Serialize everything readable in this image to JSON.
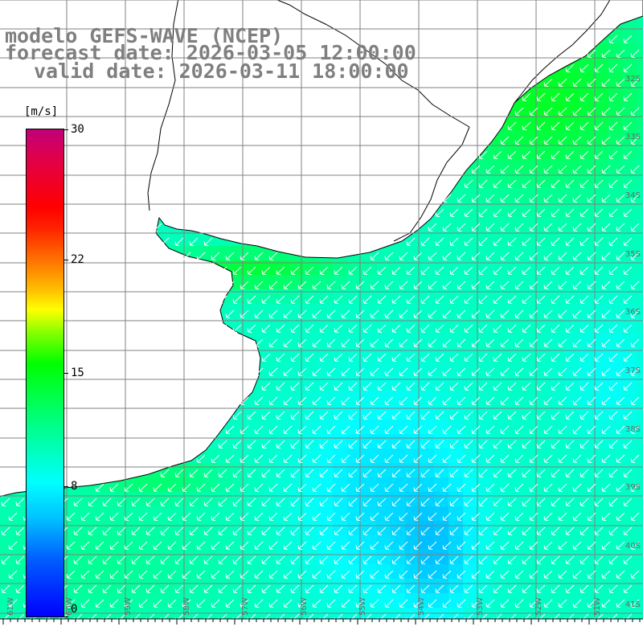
{
  "title": {
    "model": "modelo GEFS-WAVE (NCEP)",
    "forecast": "forecast date: 2026-03-05 12:00:00",
    "valid": "valid date: 2026-03-11 18:00:00"
  },
  "colorbar": {
    "unit": "[m/s]",
    "ticks": [
      "30",
      "22",
      "15",
      "8",
      "0"
    ],
    "tick_values": [
      30,
      22,
      15,
      8,
      0
    ],
    "min": 0,
    "max": 30,
    "colors": [
      "#0000ff",
      "#00c0ff",
      "#00ffff",
      "#00ff00",
      "#ffff00",
      "#ff8000",
      "#ff0000",
      "#c0007a"
    ]
  },
  "map": {
    "lat_labels": [
      "32S",
      "33S",
      "34S",
      "35S",
      "36S",
      "37S",
      "38S",
      "39S",
      "40S",
      "41S"
    ],
    "lon_labels": [
      "61W",
      "60W",
      "59W",
      "58W",
      "57W",
      "56W",
      "55W",
      "54W",
      "53W",
      "52W",
      "51W"
    ],
    "land_color": "#ffffff",
    "grid_color": "#808080",
    "arrow_color": "#ffffff",
    "arrow_direction": "southwest"
  }
}
